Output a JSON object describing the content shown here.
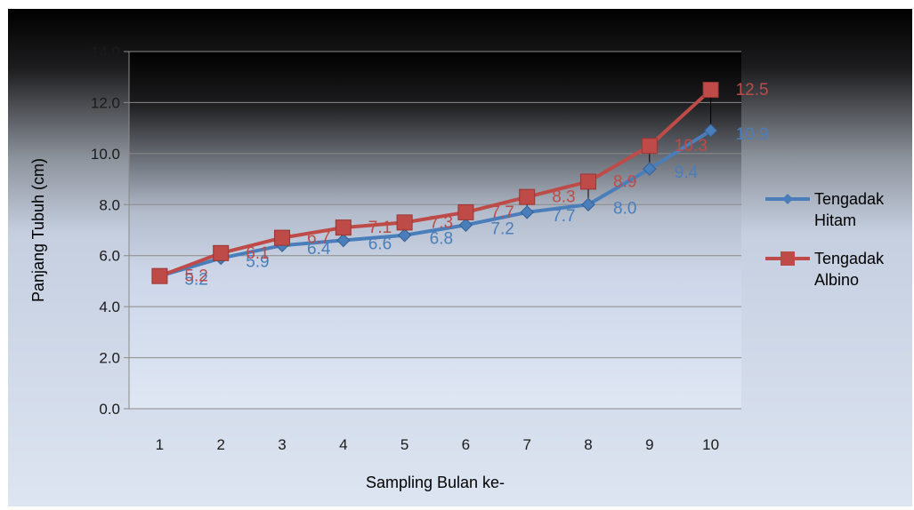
{
  "chart_data": {
    "type": "line",
    "title": "",
    "xlabel": "Sampling Bulan ke-",
    "ylabel": "Panjang Tubuh (cm)",
    "ylim": [
      0,
      14
    ],
    "yticks": [
      "0.0",
      "2.0",
      "4.0",
      "6.0",
      "8.0",
      "10.0",
      "12.0",
      "14.0"
    ],
    "categories": [
      "1",
      "2",
      "3",
      "4",
      "5",
      "6",
      "7",
      "8",
      "9",
      "10"
    ],
    "grid": true,
    "legend_position": "right",
    "high_low_lines": true,
    "series": [
      {
        "name": "Tengadak Hitam",
        "legend_lines": [
          "Tengadak",
          "Hitam"
        ],
        "color": "#4a7ebb",
        "marker": "diamond",
        "values": [
          5.2,
          5.9,
          6.4,
          6.6,
          6.8,
          7.2,
          7.7,
          8.0,
          9.4,
          10.9
        ],
        "labels": [
          "5.2",
          "5.9",
          "6.4",
          "6.6",
          "6.8",
          "7.2",
          "7.7",
          "8.0",
          "9.4",
          "10.9"
        ]
      },
      {
        "name": "Tengadak Albino",
        "legend_lines": [
          "Tengadak",
          "Albino"
        ],
        "color": "#be4b48",
        "marker": "square",
        "values": [
          5.2,
          6.1,
          6.7,
          7.1,
          7.3,
          7.7,
          8.3,
          8.9,
          10.3,
          12.5
        ],
        "labels": [
          "5.2",
          "6.1",
          "6.7",
          "7.1",
          "7.3",
          "7.7",
          "8.3",
          "8.9",
          "10.3",
          "12.5"
        ]
      }
    ]
  }
}
